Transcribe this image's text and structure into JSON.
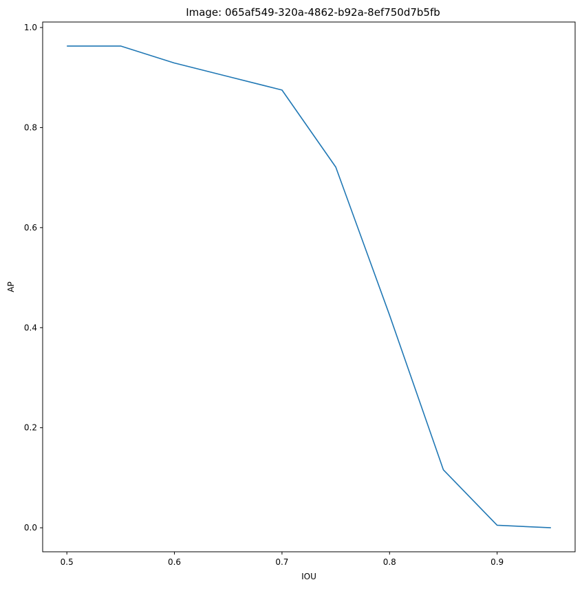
{
  "chart_data": {
    "type": "line",
    "title": "Image: 065af549-320a-4862-b92a-8ef750d7b5fb",
    "xlabel": "IOU",
    "ylabel": "AP",
    "x": [
      0.5,
      0.55,
      0.6,
      0.65,
      0.7,
      0.75,
      0.8,
      0.85,
      0.9,
      0.95
    ],
    "series": [
      {
        "values": [
          0.963,
          0.963,
          0.929,
          0.902,
          0.875,
          0.721,
          0.425,
          0.116,
          0.005,
          0.0
        ],
        "color": "#1f77b4"
      }
    ],
    "xlim": [
      0.4775,
      0.9725
    ],
    "ylim": [
      -0.048,
      1.011
    ],
    "xticks": [
      0.5,
      0.6,
      0.7,
      0.8,
      0.9
    ],
    "xtick_labels": [
      "0.5",
      "0.6",
      "0.7",
      "0.8",
      "0.9"
    ],
    "yticks": [
      0.0,
      0.2,
      0.4,
      0.6,
      0.8,
      1.0
    ],
    "ytick_labels": [
      "0.0",
      "0.2",
      "0.4",
      "0.6",
      "0.8",
      "1.0"
    ],
    "grid": false,
    "legend": false
  }
}
